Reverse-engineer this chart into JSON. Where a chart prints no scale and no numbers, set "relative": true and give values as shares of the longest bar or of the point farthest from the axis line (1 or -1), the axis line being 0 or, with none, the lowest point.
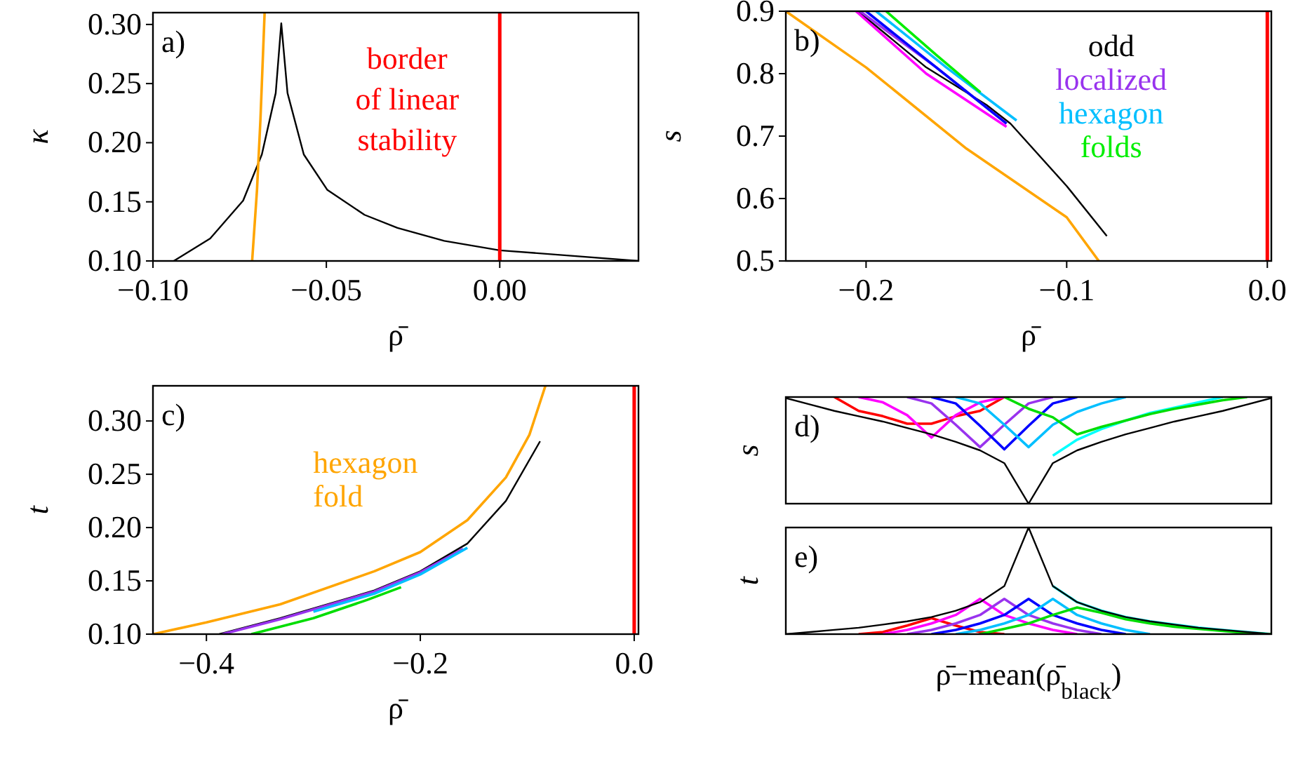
{
  "chart_data": [
    {
      "type": "line",
      "title": "a)",
      "xlabel": "ρ̄",
      "ylabel": "κ",
      "xlim": [
        -0.1,
        0.04
      ],
      "ylim": [
        0.1,
        0.31
      ],
      "xticks": [
        {
          "value": -0.1,
          "label": "−0.10"
        },
        {
          "value": -0.05,
          "label": "−0.05"
        },
        {
          "value": 0,
          "label": "0.00"
        }
      ],
      "yticks": [
        {
          "value": 0.1,
          "label": "0.10"
        },
        {
          "value": 0.15,
          "label": "0.15"
        },
        {
          "value": 0.2,
          "label": "0.20"
        },
        {
          "value": 0.25,
          "label": "0.25"
        },
        {
          "value": 0.3,
          "label": "0.30"
        }
      ],
      "grid": false,
      "legend": false,
      "ref_lines": [
        {
          "axis": "x",
          "value": 0,
          "label": "border\nof linear\nstability",
          "color": "#ff0000"
        }
      ],
      "series": [
        {
          "color": "#000000",
          "x": [
            -0.094,
            -0.0835,
            -0.074,
            -0.0686,
            -0.0646,
            -0.063,
            -0.0612,
            -0.0565,
            -0.0497,
            -0.039,
            -0.0295,
            -0.016,
            0,
            0.018,
            0.04
          ],
          "values": [
            0.1,
            0.119,
            0.151,
            0.19,
            0.242,
            0.301,
            0.242,
            0.19,
            0.16,
            0.139,
            0.128,
            0.117,
            0.109,
            0.105,
            0.1
          ]
        },
        {
          "color": "#ffa500",
          "x": [
            -0.0714,
            -0.07,
            -0.069,
            -0.0678
          ],
          "values": [
            0.1,
            0.16,
            0.22,
            0.31
          ]
        }
      ]
    },
    {
      "type": "line",
      "title": "b)",
      "xlabel": "ρ̄",
      "ylabel": "s",
      "xlim": [
        -0.24,
        0.002
      ],
      "ylim": [
        0.5,
        0.9
      ],
      "xticks": [
        {
          "value": -0.2,
          "label": "−0.2"
        },
        {
          "value": -0.1,
          "label": "−0.1"
        },
        {
          "value": 0,
          "label": "0.0"
        }
      ],
      "yticks": [
        {
          "value": 0.5,
          "label": "0.5"
        },
        {
          "value": 0.6,
          "label": "0.6"
        },
        {
          "value": 0.7,
          "label": "0.7"
        },
        {
          "value": 0.8,
          "label": "0.8"
        },
        {
          "value": 0.9,
          "label": "0.9"
        }
      ],
      "grid": false,
      "legend": "top right",
      "ref_lines": [
        {
          "axis": "x",
          "value": 0,
          "color": "#ff0000"
        }
      ],
      "series": [
        {
          "color": "#ffa500",
          "x": [
            -0.24,
            -0.2,
            -0.15,
            -0.1,
            -0.084
          ],
          "values": [
            0.9,
            0.81,
            0.68,
            0.57,
            0.5
          ]
        },
        {
          "name": "odd",
          "color": "#000000",
          "x": [
            -0.204,
            -0.17,
            -0.14,
            -0.128,
            -0.1,
            -0.08
          ],
          "values": [
            0.9,
            0.81,
            0.75,
            0.72,
            0.62,
            0.54
          ]
        },
        {
          "color": "#ff00ff",
          "x": [
            -0.205,
            -0.17,
            -0.13
          ],
          "values": [
            0.9,
            0.8,
            0.715
          ]
        },
        {
          "name": "localized",
          "color": "#9933ee",
          "x": [
            -0.203,
            -0.165,
            -0.13
          ],
          "values": [
            0.9,
            0.81,
            0.72
          ]
        },
        {
          "color": "#0000ff",
          "x": [
            -0.2,
            -0.165,
            -0.13
          ],
          "values": [
            0.9,
            0.81,
            0.72
          ]
        },
        {
          "name": "hexagon",
          "color": "#00bfff",
          "x": [
            -0.195,
            -0.16,
            -0.125
          ],
          "values": [
            0.9,
            0.81,
            0.725
          ]
        },
        {
          "name": "folds",
          "color": "#00ee00",
          "x": [
            -0.19,
            -0.165,
            -0.143
          ],
          "values": [
            0.9,
            0.83,
            0.77
          ]
        }
      ]
    },
    {
      "type": "line",
      "title": "c)",
      "xlabel": "ρ̄",
      "ylabel": "t",
      "xlim": [
        -0.45,
        0.004
      ],
      "ylim": [
        0.1,
        0.333
      ],
      "xticks": [
        {
          "value": -0.4,
          "label": "−0.4"
        },
        {
          "value": -0.2,
          "label": "−0.2"
        },
        {
          "value": 0,
          "label": "0.0"
        }
      ],
      "yticks": [
        {
          "value": 0.1,
          "label": "0.10"
        },
        {
          "value": 0.15,
          "label": "0.15"
        },
        {
          "value": 0.2,
          "label": "0.20"
        },
        {
          "value": 0.25,
          "label": "0.25"
        },
        {
          "value": 0.3,
          "label": "0.30"
        }
      ],
      "grid": false,
      "legend": "top left",
      "ref_lines": [
        {
          "axis": "x",
          "value": 0,
          "color": "#ff0000"
        }
      ],
      "series": [
        {
          "name": "hexagon\nfold",
          "color": "#ffa500",
          "x": [
            -0.45,
            -0.4,
            -0.331,
            -0.243,
            -0.2,
            -0.156,
            -0.12,
            -0.098,
            -0.083
          ],
          "values": [
            0.1,
            0.111,
            0.128,
            0.159,
            0.177,
            0.207,
            0.247,
            0.287,
            0.333
          ]
        },
        {
          "color": "#000000",
          "x": [
            -0.388,
            -0.331,
            -0.243,
            -0.2,
            -0.156,
            -0.12,
            -0.088
          ],
          "values": [
            0.1,
            0.115,
            0.141,
            0.159,
            0.185,
            0.225,
            0.281
          ]
        },
        {
          "color": "#9933ee",
          "x": [
            -0.385,
            -0.331,
            -0.243,
            -0.2,
            -0.16
          ],
          "values": [
            0.1,
            0.114,
            0.14,
            0.158,
            0.18
          ]
        },
        {
          "color": "#00bfff",
          "x": [
            -0.3,
            -0.243,
            -0.2,
            -0.156
          ],
          "values": [
            0.121,
            0.138,
            0.156,
            0.181
          ]
        },
        {
          "color": "#00dd00",
          "x": [
            -0.358,
            -0.3,
            -0.25,
            -0.218
          ],
          "values": [
            0.1,
            0.115,
            0.132,
            0.144
          ]
        }
      ]
    },
    {
      "type": "line",
      "title": "d)",
      "ylabel": "s",
      "relative": true,
      "grid": false,
      "legend": false,
      "categories": [
        null,
        null,
        null,
        null,
        null,
        null,
        null,
        null,
        null,
        null,
        null,
        null,
        null,
        null,
        null,
        null,
        null,
        null,
        null,
        null,
        null
      ],
      "series": [
        {
          "color": "#ff0000",
          "values": [
            null,
            null,
            1,
            0.87,
            0.82,
            0.75,
            0.75,
            0.82,
            0.87,
            1,
            null,
            null,
            null,
            null,
            null,
            null,
            null,
            null,
            null,
            null,
            null
          ]
        },
        {
          "color": "#ff00ff",
          "values": [
            null,
            null,
            null,
            1,
            0.95,
            0.83,
            0.62,
            0.83,
            0.95,
            1,
            null,
            null,
            null,
            null,
            null,
            null,
            null,
            null,
            null,
            null,
            null
          ]
        },
        {
          "color": "#9933ee",
          "values": [
            null,
            null,
            null,
            null,
            null,
            1,
            0.94,
            0.74,
            0.53,
            0.74,
            0.94,
            1,
            null,
            null,
            null,
            null,
            null,
            null,
            null,
            null,
            null
          ]
        },
        {
          "color": "#0000ff",
          "values": [
            null,
            null,
            null,
            null,
            null,
            null,
            1,
            0.94,
            0.73,
            0.51,
            0.73,
            0.94,
            1,
            null,
            null,
            null,
            null,
            null,
            null,
            null,
            null
          ]
        },
        {
          "color": "#00bfff",
          "values": [
            null,
            null,
            null,
            null,
            null,
            null,
            null,
            1,
            0.94,
            0.74,
            0.53,
            0.74,
            0.86,
            0.94,
            1,
            null,
            null,
            null,
            null,
            null,
            null
          ]
        },
        {
          "color": "#00ffff",
          "values": [
            null,
            null,
            null,
            null,
            null,
            null,
            null,
            null,
            null,
            null,
            null,
            0.45,
            0.6,
            0.7,
            0.78,
            0.85,
            0.9,
            0.95,
            1,
            null,
            null
          ]
        },
        {
          "color": "#00dd00",
          "values": [
            null,
            null,
            null,
            null,
            null,
            null,
            null,
            null,
            null,
            1,
            0.89,
            0.81,
            0.65,
            0.72,
            0.78,
            0.84,
            0.89,
            0.93,
            0.97,
            1,
            null
          ]
        },
        {
          "color": "#000000",
          "values": [
            0.99,
            0.93,
            0.87,
            0.82,
            0.77,
            0.71,
            0.65,
            0.58,
            0.5,
            0.38,
            0,
            0.38,
            0.5,
            0.58,
            0.65,
            0.71,
            0.77,
            0.82,
            0.87,
            0.93,
            0.99
          ]
        }
      ]
    },
    {
      "type": "line",
      "title": "e)",
      "xlabel": "ρ̄−mean(ρ̄$_{black}$)",
      "ylabel": "t",
      "relative": true,
      "grid": false,
      "legend": false,
      "categories": [
        null,
        null,
        null,
        null,
        null,
        null,
        null,
        null,
        null,
        null,
        null,
        null,
        null,
        null,
        null,
        null,
        null,
        null,
        null,
        null,
        null
      ],
      "series": [
        {
          "color": "#ff0000",
          "values": [
            null,
            null,
            null,
            0,
            0.02,
            0.08,
            0.15,
            0.08,
            0.02,
            0,
            null,
            null,
            null,
            null,
            null,
            null,
            null,
            null,
            null,
            null,
            null
          ]
        },
        {
          "color": "#ff00ff",
          "values": [
            null,
            null,
            null,
            null,
            0,
            0.04,
            0.1,
            0.18,
            0.33,
            0.18,
            0.1,
            0.04,
            0,
            null,
            null,
            null,
            null,
            null,
            null,
            null,
            null
          ]
        },
        {
          "color": "#9933ee",
          "values": [
            null,
            null,
            null,
            null,
            null,
            0,
            0.04,
            0.1,
            0.18,
            0.33,
            0.18,
            0.1,
            0.04,
            0,
            null,
            null,
            null,
            null,
            null,
            null,
            null
          ]
        },
        {
          "color": "#0000ff",
          "values": [
            null,
            null,
            null,
            null,
            null,
            null,
            0,
            0.04,
            0.1,
            0.18,
            0.33,
            0.18,
            0.1,
            0.04,
            0,
            null,
            null,
            null,
            null,
            null,
            null
          ]
        },
        {
          "color": "#00bfff",
          "values": [
            null,
            null,
            null,
            null,
            null,
            null,
            null,
            0,
            0.04,
            0.1,
            0.18,
            0.33,
            0.18,
            0.1,
            0.04,
            0,
            null,
            null,
            null,
            null,
            null
          ]
        },
        {
          "color": "#00ffff",
          "values": [
            null,
            null,
            null,
            null,
            null,
            null,
            null,
            null,
            null,
            null,
            null,
            0.45,
            0.3,
            0.22,
            0.16,
            0.12,
            0.09,
            0.06,
            0.04,
            0.02,
            0
          ]
        },
        {
          "color": "#00dd00",
          "values": [
            null,
            null,
            null,
            null,
            null,
            null,
            null,
            null,
            0,
            0.05,
            0.1,
            0.18,
            0.25,
            0.2,
            0.14,
            0.1,
            0.07,
            0.05,
            0.03,
            0.01,
            0
          ]
        },
        {
          "color": "#000000",
          "values": [
            0,
            0.02,
            0.04,
            0.06,
            0.09,
            0.12,
            0.16,
            0.22,
            0.3,
            0.45,
            1,
            0.45,
            0.3,
            0.22,
            0.16,
            0.12,
            0.09,
            0.06,
            0.04,
            0.02,
            0
          ]
        }
      ]
    }
  ]
}
